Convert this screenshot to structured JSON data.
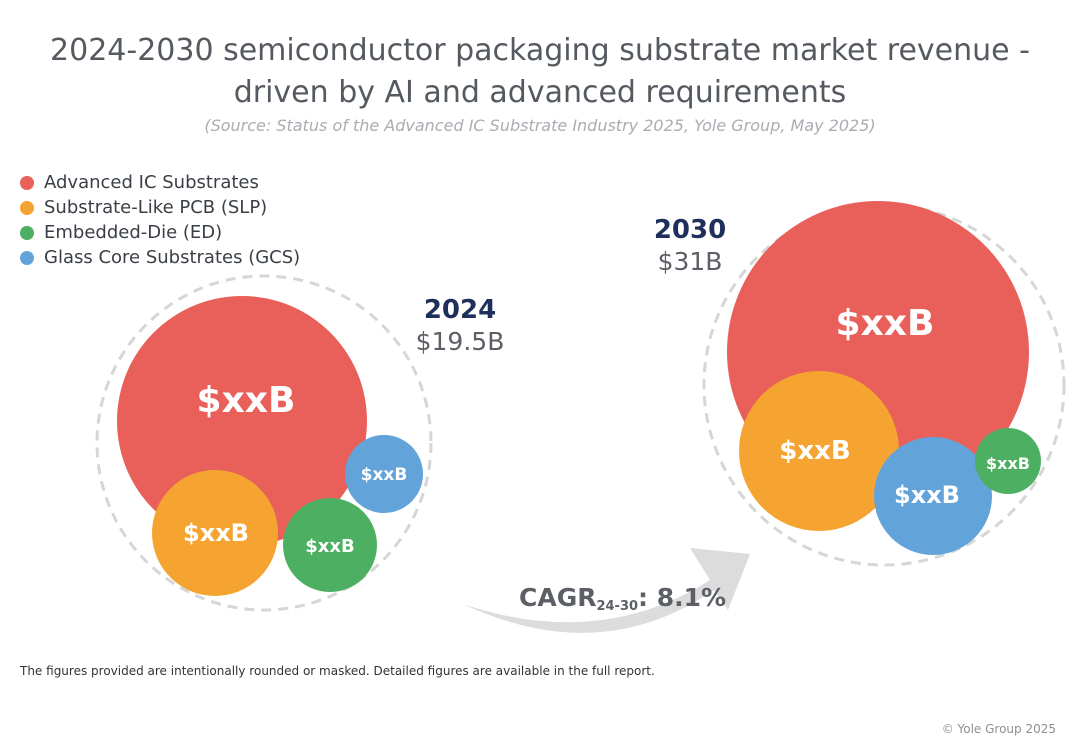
{
  "title_line1": "2024-2030 semiconductor packaging substrate market revenue -",
  "title_line2": "driven by AI and advanced requirements",
  "subtitle": "(Source: Status of the Advanced IC Substrate Industry 2025, Yole Group, May 2025)",
  "legend": [
    {
      "label": "Advanced IC Substrates",
      "color": "#e9605a"
    },
    {
      "label": "Substrate-Like PCB (SLP)",
      "color": "#f5a431"
    },
    {
      "label": "Embedded-Die (ED)",
      "color": "#4caf61"
    },
    {
      "label": "Glass Core Substrates (GCS)",
      "color": "#62a4da"
    }
  ],
  "chart_data": {
    "type": "bubble",
    "title": "2024-2030 semiconductor packaging substrate market revenue - driven by AI and advanced requirements",
    "series": [
      "Advanced IC Substrates",
      "Substrate-Like PCB (SLP)",
      "Embedded-Die (ED)",
      "Glass Core Substrates (GCS)"
    ],
    "years": [
      {
        "year": "2024",
        "total": "$19.5B",
        "total_value_busd": 19.5,
        "bubbles": [
          {
            "series": "Advanced IC Substrates",
            "label": "$xxB"
          },
          {
            "series": "Substrate-Like PCB (SLP)",
            "label": "$xxB"
          },
          {
            "series": "Embedded-Die (ED)",
            "label": "$xxB"
          },
          {
            "series": "Glass Core Substrates (GCS)",
            "label": "$xxB"
          }
        ]
      },
      {
        "year": "2030",
        "total": "$31B",
        "total_value_busd": 31,
        "bubbles": [
          {
            "series": "Advanced IC Substrates",
            "label": "$xxB"
          },
          {
            "series": "Substrate-Like PCB (SLP)",
            "label": "$xxB"
          },
          {
            "series": "Glass Core Substrates (GCS)",
            "label": "$xxB"
          },
          {
            "series": "Embedded-Die (ED)",
            "label": "$xxB"
          }
        ]
      }
    ],
    "cagr": {
      "prefix": "CAGR",
      "period": "24-30",
      "value": ": 8.1%",
      "value_percent": 8.1
    }
  },
  "footnote": "The figures provided are intentionally rounded or masked. Detailed figures are available in the full report.",
  "copyright": "© Yole Group 2025"
}
